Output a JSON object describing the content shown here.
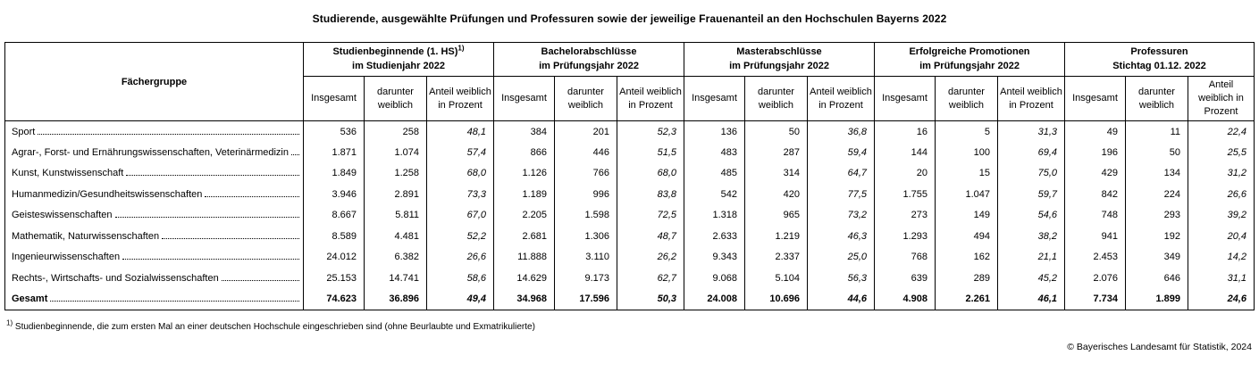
{
  "title": "Studierende, ausgewählte Prüfungen und Professuren sowie der jeweilige Frauenanteil an den Hochschulen Bayerns 2022",
  "table": {
    "row_header_label": "Fächergruppe",
    "groups": [
      {
        "title_line1": "Studienbeginnende (1. HS)",
        "sup": "1)",
        "title_line2": "im Studienjahr 2022"
      },
      {
        "title_line1": "Bachelorabschlüsse",
        "title_line2": "im Prüfungsjahr 2022"
      },
      {
        "title_line1": "Masterabschlüsse",
        "title_line2": "im Prüfungsjahr 2022"
      },
      {
        "title_line1": "Erfolgreiche Promotionen",
        "title_line2": "im Prüfungsjahr 2022"
      },
      {
        "title_line1": "Professuren",
        "title_line2": "Stichtag 01.12. 2022"
      }
    ],
    "subheaders": {
      "total": "Insgesamt",
      "female": "darunter weiblich",
      "share": "Anteil weiblich in Prozent"
    },
    "rows": [
      {
        "label": "Sport",
        "values": [
          "536",
          "258",
          "48,1",
          "384",
          "201",
          "52,3",
          "136",
          "50",
          "36,8",
          "16",
          "5",
          "31,3",
          "49",
          "11",
          "22,4"
        ]
      },
      {
        "label": "Agrar-, Forst- und Ernährungswissenschaften, Veterinärmedizin",
        "values": [
          "1.871",
          "1.074",
          "57,4",
          "866",
          "446",
          "51,5",
          "483",
          "287",
          "59,4",
          "144",
          "100",
          "69,4",
          "196",
          "50",
          "25,5"
        ]
      },
      {
        "label": "Kunst, Kunstwissenschaft",
        "values": [
          "1.849",
          "1.258",
          "68,0",
          "1.126",
          "766",
          "68,0",
          "485",
          "314",
          "64,7",
          "20",
          "15",
          "75,0",
          "429",
          "134",
          "31,2"
        ]
      },
      {
        "label": "Humanmedizin/Gesundheitswissenschaften",
        "values": [
          "3.946",
          "2.891",
          "73,3",
          "1.189",
          "996",
          "83,8",
          "542",
          "420",
          "77,5",
          "1.755",
          "1.047",
          "59,7",
          "842",
          "224",
          "26,6"
        ]
      },
      {
        "label": "Geisteswissenschaften",
        "values": [
          "8.667",
          "5.811",
          "67,0",
          "2.205",
          "1.598",
          "72,5",
          "1.318",
          "965",
          "73,2",
          "273",
          "149",
          "54,6",
          "748",
          "293",
          "39,2"
        ]
      },
      {
        "label": "Mathematik, Naturwissenschaften",
        "values": [
          "8.589",
          "4.481",
          "52,2",
          "2.681",
          "1.306",
          "48,7",
          "2.633",
          "1.219",
          "46,3",
          "1.293",
          "494",
          "38,2",
          "941",
          "192",
          "20,4"
        ]
      },
      {
        "label": "Ingenieurwissenschaften",
        "values": [
          "24.012",
          "6.382",
          "26,6",
          "11.888",
          "3.110",
          "26,2",
          "9.343",
          "2.337",
          "25,0",
          "768",
          "162",
          "21,1",
          "2.453",
          "349",
          "14,2"
        ]
      },
      {
        "label": "Rechts-, Wirtschafts- und Sozialwissenschaften",
        "values": [
          "25.153",
          "14.741",
          "58,6",
          "14.629",
          "9.173",
          "62,7",
          "9.068",
          "5.104",
          "56,3",
          "639",
          "289",
          "45,2",
          "2.076",
          "646",
          "31,1"
        ]
      }
    ],
    "total_row": {
      "label": "Gesamt",
      "values": [
        "74.623",
        "36.896",
        "49,4",
        "34.968",
        "17.596",
        "50,3",
        "24.008",
        "10.696",
        "44,6",
        "4.908",
        "2.261",
        "46,1",
        "7.734",
        "1.899",
        "24,6"
      ]
    }
  },
  "footnote": {
    "marker": "1)",
    "text": "Studienbeginnende, die zum ersten Mal an einer deutschen Hochschule eingeschrieben sind (ohne Beurlaubte und Exmatrikulierte)"
  },
  "copyright": "© Bayerisches Landesamt für Statistik, 2024"
}
